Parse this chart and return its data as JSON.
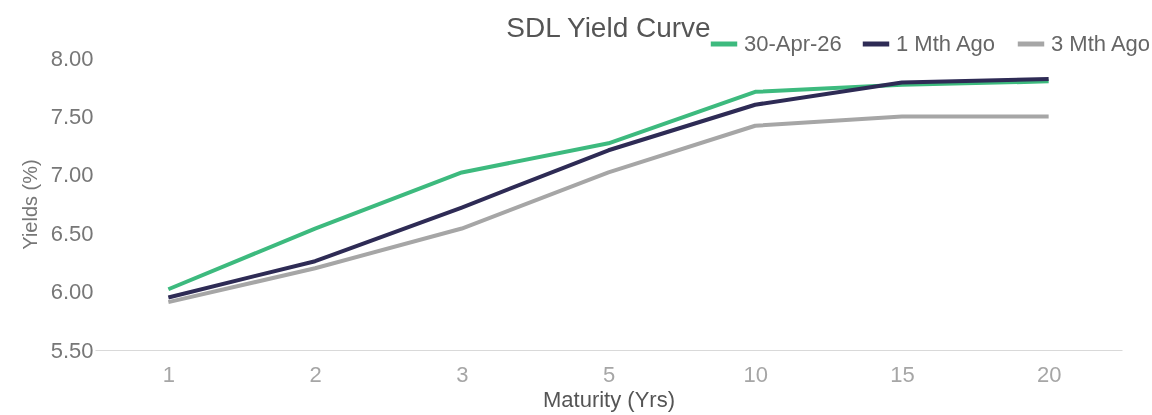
{
  "chart_data": {
    "type": "line",
    "title": "SDL Yield Curve",
    "xlabel": "Maturity (Yrs)",
    "ylabel": "Yields (%)",
    "categories": [
      "1",
      "2",
      "3",
      "5",
      "10",
      "15",
      "20"
    ],
    "series": [
      {
        "name": "30-Apr-26",
        "color": "#3dba7e",
        "values": [
          6.02,
          6.54,
          7.02,
          7.27,
          7.71,
          7.77,
          7.8
        ]
      },
      {
        "name": "1 Mth Ago",
        "color": "#2e2b55",
        "values": [
          5.95,
          6.26,
          6.72,
          7.21,
          7.6,
          7.79,
          7.82
        ]
      },
      {
        "name": "3 Mth Ago",
        "color": "#a6a6a6",
        "values": [
          5.91,
          6.2,
          6.54,
          7.02,
          7.42,
          7.5,
          7.5
        ]
      }
    ],
    "ylim": [
      5.5,
      8.0
    ],
    "yticks": [
      {
        "value": 5.5,
        "label": "5.50"
      },
      {
        "value": 6.0,
        "label": "6.00"
      },
      {
        "value": 6.5,
        "label": "6.50"
      },
      {
        "value": 7.0,
        "label": "7.00"
      },
      {
        "value": 7.5,
        "label": "7.50"
      },
      {
        "value": 8.0,
        "label": "8.00"
      }
    ],
    "grid": false,
    "legend": "top right",
    "marker": "none",
    "line_style": "solid"
  }
}
